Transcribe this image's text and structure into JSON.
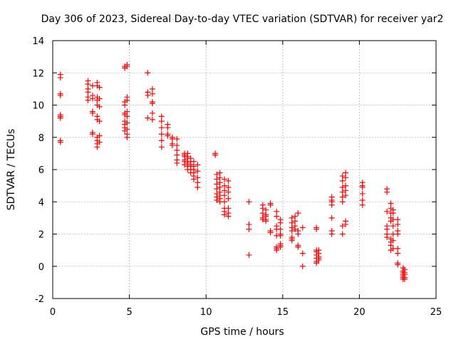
{
  "chart_data": {
    "type": "scatter",
    "title": "Day 306 of 2023, Sidereal Day-to-day VTEC variation (SDTVAR) for receiver yar2",
    "xlabel": "GPS time / hours",
    "ylabel": "SDTVAR / TECUs",
    "xlim": [
      0,
      25
    ],
    "ylim": [
      -2,
      14
    ],
    "xticks": [
      0,
      5,
      10,
      15,
      20,
      25
    ],
    "yticks": [
      -2,
      0,
      2,
      4,
      6,
      8,
      10,
      12,
      14
    ],
    "grid": true,
    "marker": "plus",
    "color": "#ff0000",
    "series": [
      {
        "name": "SDTVAR",
        "clusters": [
          {
            "x": 0.5,
            "y": [
              11.9,
              11.7,
              10.7,
              10.6,
              9.4,
              9.3,
              9.2,
              7.8,
              7.7
            ]
          },
          {
            "x": 2.3,
            "y": [
              11.5,
              11.3,
              11.0,
              10.8,
              10.5,
              10.3
            ]
          },
          {
            "x": 2.6,
            "y": [
              11.2,
              10.6,
              10.4,
              9.6,
              9.5,
              8.3,
              8.2
            ]
          },
          {
            "x": 2.9,
            "y": [
              11.4,
              11.2,
              10.5,
              10.3,
              10.0,
              9.3,
              9.1,
              8.0,
              7.8,
              7.6,
              7.4
            ]
          },
          {
            "x": 3.05,
            "y": [
              11.1,
              10.4,
              9.9,
              9.0,
              8.1,
              7.7
            ]
          },
          {
            "x": 4.7,
            "y": [
              12.4,
              12.3,
              10.2,
              10.0,
              9.5,
              9.4,
              9.0,
              8.8,
              8.6,
              8.4
            ]
          },
          {
            "x": 4.85,
            "y": [
              12.5,
              12.4,
              10.5,
              10.3,
              9.6,
              9.3,
              8.9,
              8.5,
              8.2,
              8.0
            ]
          },
          {
            "x": 6.2,
            "y": [
              12.0,
              10.8,
              10.6,
              9.2
            ]
          },
          {
            "x": 6.5,
            "y": [
              11.0,
              10.7,
              10.2,
              10.1,
              9.5,
              9.1
            ]
          },
          {
            "x": 7.1,
            "y": [
              9.3,
              9.0,
              8.6,
              8.2,
              7.8,
              7.4
            ]
          },
          {
            "x": 7.5,
            "y": [
              8.8,
              8.6,
              8.2,
              8.1
            ]
          },
          {
            "x": 7.8,
            "y": [
              7.6,
              7.5,
              7.9,
              8.0
            ]
          },
          {
            "x": 8.1,
            "y": [
              7.9,
              7.5,
              7.2,
              6.9,
              6.6,
              6.4
            ]
          },
          {
            "x": 8.6,
            "y": [
              7.0,
              6.9,
              6.8,
              6.6,
              6.5,
              6.3
            ]
          },
          {
            "x": 8.8,
            "y": [
              7.0,
              6.8,
              6.7,
              6.5,
              6.4,
              6.2,
              6.0
            ]
          },
          {
            "x": 9.0,
            "y": [
              6.7,
              6.5,
              6.3,
              6.2,
              6.0,
              5.8
            ]
          },
          {
            "x": 9.2,
            "y": [
              6.5,
              6.2,
              6.0,
              5.8,
              5.6,
              5.4
            ]
          },
          {
            "x": 9.45,
            "y": [
              6.3,
              5.9,
              5.5,
              5.2,
              4.9
            ]
          },
          {
            "x": 10.6,
            "y": [
              7.0,
              6.9
            ]
          },
          {
            "x": 10.7,
            "y": [
              5.7,
              5.4,
              5.1,
              4.8,
              4.5,
              4.3,
              4.1
            ]
          },
          {
            "x": 10.9,
            "y": [
              5.8,
              5.5,
              5.2,
              4.9,
              4.6,
              4.4,
              4.2,
              4.0
            ]
          },
          {
            "x": 11.2,
            "y": [
              5.4,
              5.0,
              4.7,
              4.4,
              4.0,
              3.6,
              3.4,
              3.2
            ]
          },
          {
            "x": 11.45,
            "y": [
              5.3,
              4.9,
              4.6,
              4.2,
              3.6,
              3.3,
              3.1
            ]
          },
          {
            "x": 12.8,
            "y": [
              4.0,
              2.6,
              2.3,
              0.7
            ]
          },
          {
            "x": 13.7,
            "y": [
              3.8,
              3.6,
              3.3,
              3.0,
              2.9
            ]
          },
          {
            "x": 13.9,
            "y": [
              3.5,
              3.2,
              3.1,
              2.9,
              2.8
            ]
          },
          {
            "x": 14.2,
            "y": [
              3.9,
              3.8,
              2.2,
              2.1
            ]
          },
          {
            "x": 14.6,
            "y": [
              3.4,
              3.1,
              2.5,
              2.3,
              1.9,
              1.2,
              1.1,
              1.0
            ]
          },
          {
            "x": 14.85,
            "y": [
              2.9,
              2.7,
              2.3,
              2.0,
              1.9,
              1.4,
              1.3,
              1.2
            ]
          },
          {
            "x": 15.6,
            "y": [
              3.0,
              2.7,
              2.4,
              2.2,
              1.8,
              1.7,
              1.6
            ]
          },
          {
            "x": 15.8,
            "y": [
              3.1,
              2.8,
              2.5,
              2.3
            ]
          },
          {
            "x": 16.0,
            "y": [
              3.3,
              2.2,
              2.0,
              1.3,
              1.2
            ]
          },
          {
            "x": 16.3,
            "y": [
              2.4,
              0.8,
              0.0
            ]
          },
          {
            "x": 17.2,
            "y": [
              2.4,
              2.3,
              1.0,
              0.9,
              0.7,
              0.5,
              0.3,
              0.2
            ]
          },
          {
            "x": 17.35,
            "y": [
              1.0,
              0.8,
              0.6,
              0.5,
              0.4
            ]
          },
          {
            "x": 18.2,
            "y": [
              4.3,
              4.1,
              4.0,
              3.8,
              3.0,
              2.2,
              2.0
            ]
          },
          {
            "x": 18.9,
            "y": [
              5.6,
              5.3,
              4.9,
              4.6,
              4.3,
              4.0,
              2.5,
              2.0
            ]
          },
          {
            "x": 19.1,
            "y": [
              5.8,
              5.5,
              5.0,
              4.7,
              4.4,
              2.8,
              2.6
            ]
          },
          {
            "x": 20.2,
            "y": [
              5.2,
              5.0,
              4.9,
              4.5,
              4.1,
              3.8
            ]
          },
          {
            "x": 21.8,
            "y": [
              4.8,
              4.6,
              3.4,
              2.5,
              2.3,
              2.0,
              1.8
            ]
          },
          {
            "x": 22.05,
            "y": [
              3.9,
              3.6,
              3.3,
              3.0,
              2.8,
              1.7,
              1.5,
              1.3,
              1.0
            ]
          },
          {
            "x": 22.2,
            "y": [
              3.5,
              3.3,
              2.9,
              2.5,
              2.0,
              1.6,
              1.1
            ]
          },
          {
            "x": 22.5,
            "y": [
              2.9,
              2.6,
              2.2,
              2.0,
              1.1,
              0.8,
              0.2,
              0.1
            ]
          },
          {
            "x": 22.85,
            "y": [
              -0.1,
              -0.3,
              -0.4,
              -0.5,
              -0.6,
              -0.7,
              -0.8
            ]
          },
          {
            "x": 22.95,
            "y": [
              -0.2,
              -0.4,
              -0.5,
              -0.7,
              -0.8
            ]
          }
        ]
      }
    ]
  }
}
